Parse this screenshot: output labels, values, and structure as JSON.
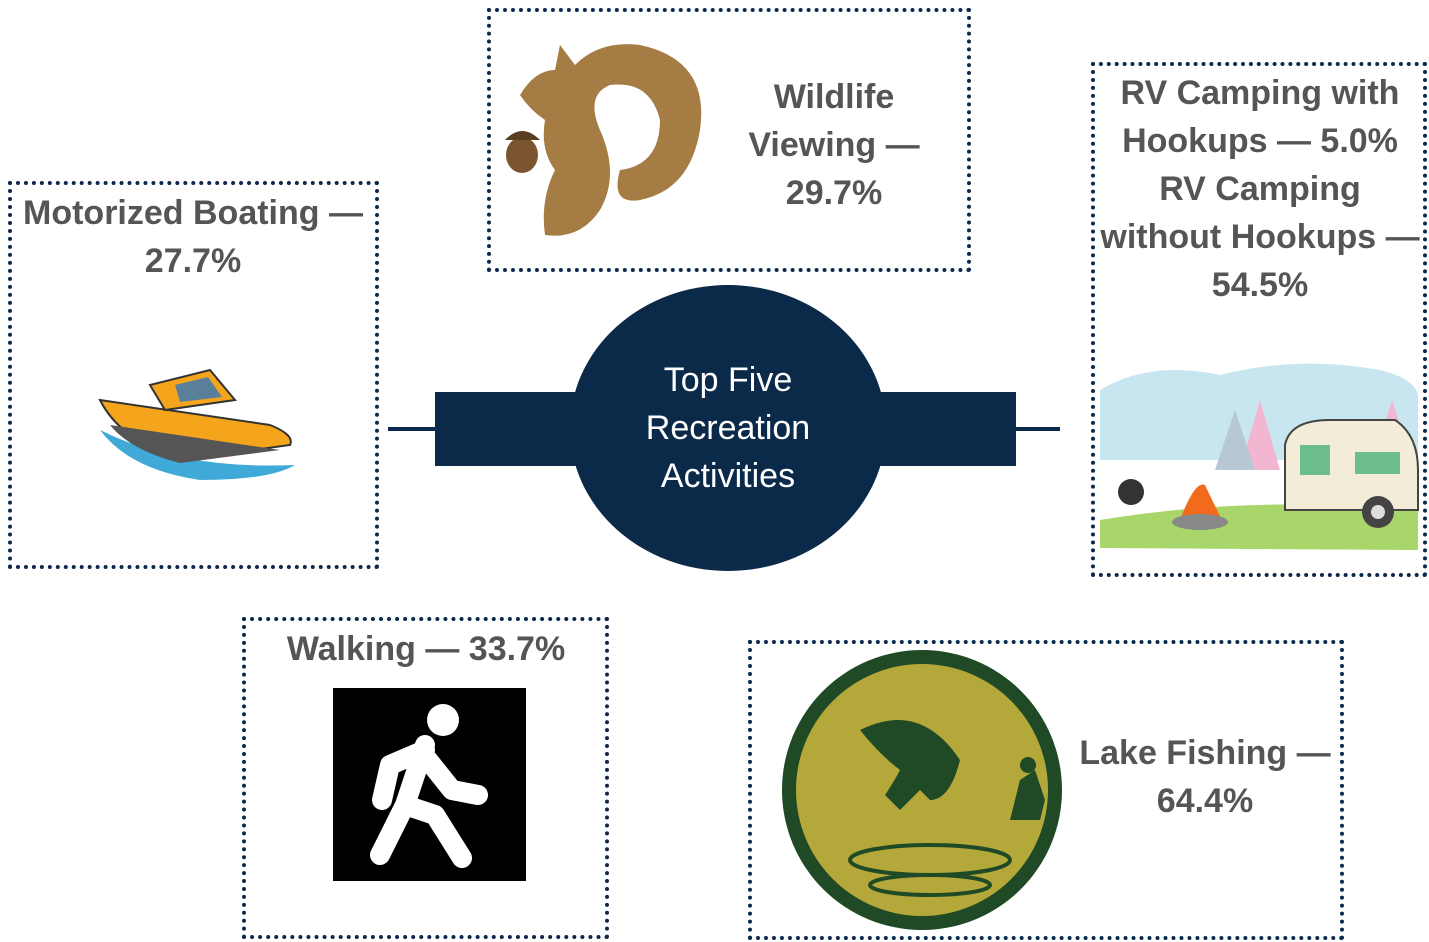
{
  "center": {
    "title": "Top Five Recreation Activities"
  },
  "activities": [
    {
      "label": "Motorized Boating — 27.7%"
    },
    {
      "label": "Wildlife Viewing — 29.7%"
    },
    {
      "label": "RV Camping with Hookups — 5.0% RV Camping without Hookups — 54.5%"
    },
    {
      "label": "Walking — 33.7%"
    },
    {
      "label": "Lake Fishing — 64.4%"
    }
  ]
}
